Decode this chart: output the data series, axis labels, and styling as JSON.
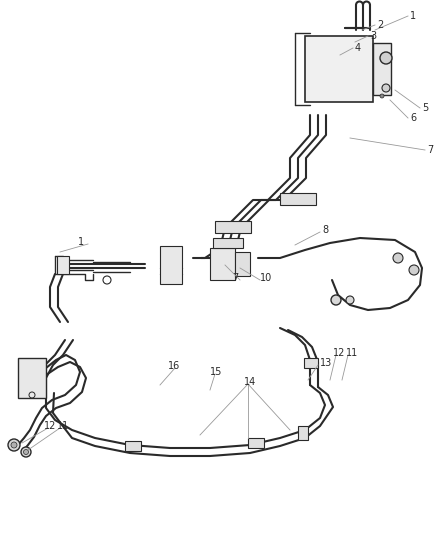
{
  "bg_color": "#ffffff",
  "line_color": "#2a2a2a",
  "label_color": "#2a2a2a",
  "leader_color": "#999999",
  "figsize": [
    4.38,
    5.33
  ],
  "dpi": 100
}
